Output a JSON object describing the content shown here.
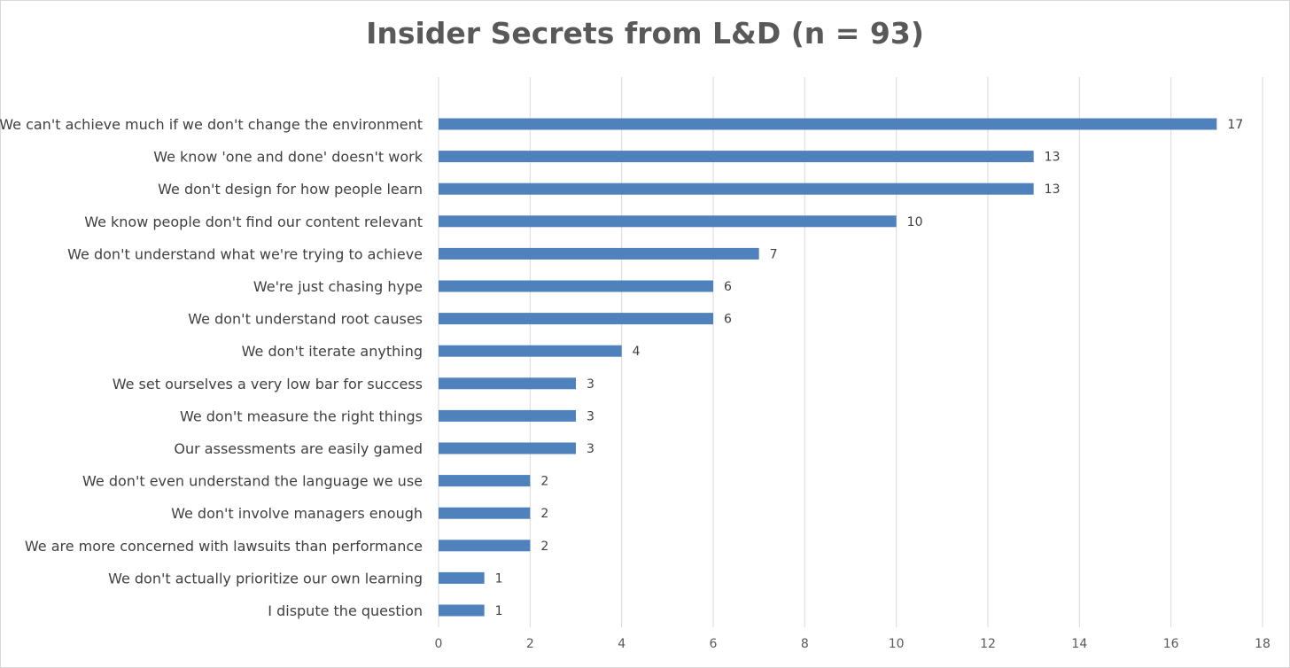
{
  "chart_data": {
    "type": "bar",
    "orientation": "horizontal",
    "title": "Insider Secrets from L&D (n = 93)",
    "categories": [
      "We can't achieve much if we don't change the environment",
      "We know 'one and done' doesn't work",
      "We don't design for how people learn",
      "We know people don't find our content relevant",
      "We don't understand what we're trying to achieve",
      "We're just chasing hype",
      "We don't understand root causes",
      "We don't iterate anything",
      "We set ourselves a very low bar for success",
      "We don't measure the right things",
      "Our assessments are easily gamed",
      "We don't even understand the language we use",
      "We don't involve managers enough",
      "We are more concerned with lawsuits than performance",
      "We don't actually prioritize our own learning",
      "I dispute the question"
    ],
    "values": [
      17,
      13,
      13,
      10,
      7,
      6,
      6,
      4,
      3,
      3,
      3,
      2,
      2,
      2,
      1,
      1
    ],
    "xlim": [
      0,
      18
    ],
    "x_ticks": [
      "0",
      "2",
      "4",
      "6",
      "8",
      "10",
      "12",
      "14",
      "16",
      "18"
    ],
    "grid": "vertical",
    "data_labels": true,
    "legend": "none",
    "colors": {
      "bar": "#4f81bd",
      "grid": "#d9d9d9",
      "title": "#595959",
      "text": "#404040"
    }
  }
}
